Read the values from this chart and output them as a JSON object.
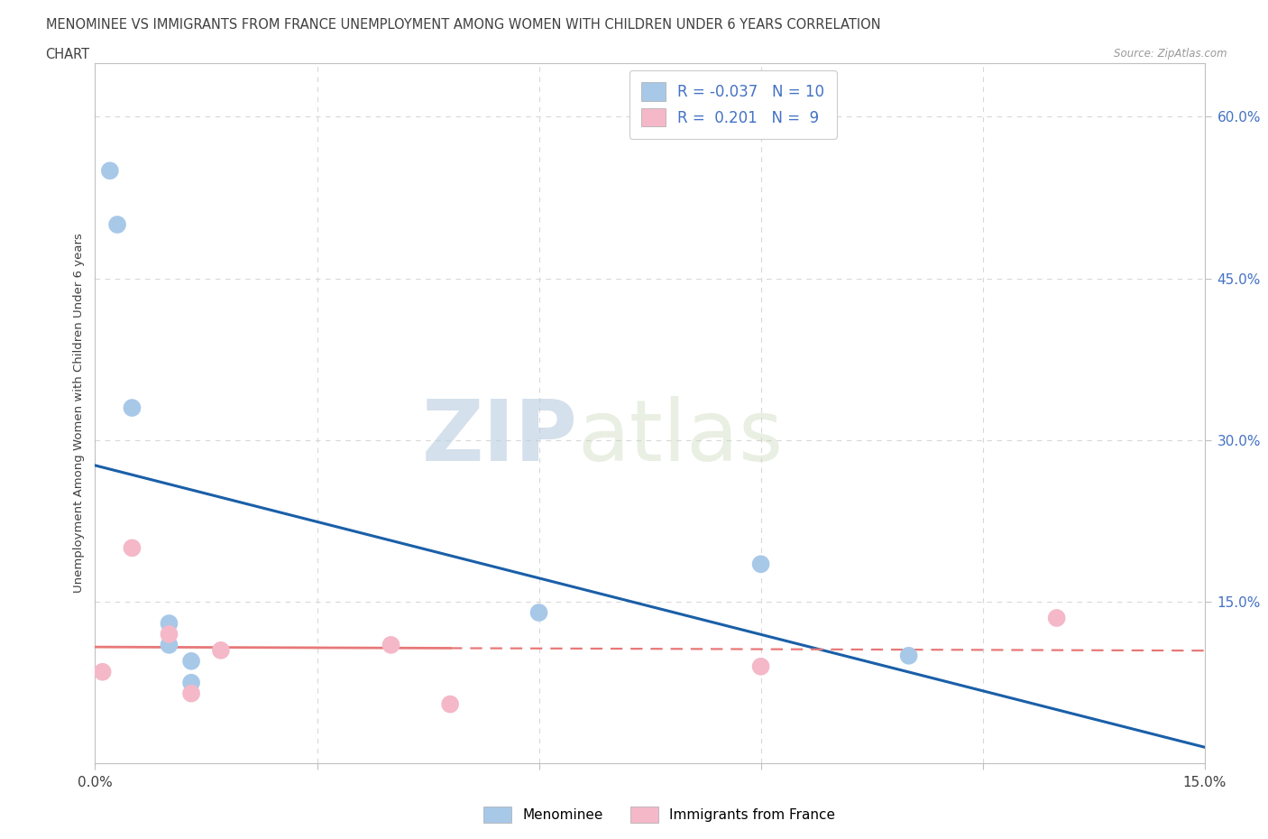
{
  "title_line1": "MENOMINEE VS IMMIGRANTS FROM FRANCE UNEMPLOYMENT AMONG WOMEN WITH CHILDREN UNDER 6 YEARS CORRELATION",
  "title_line2": "CHART",
  "source": "Source: ZipAtlas.com",
  "ylabel": "Unemployment Among Women with Children Under 6 years",
  "xlim": [
    0.0,
    0.15
  ],
  "ylim": [
    0.0,
    0.65
  ],
  "menominee_x": [
    0.002,
    0.003,
    0.005,
    0.01,
    0.01,
    0.013,
    0.013,
    0.06,
    0.09,
    0.11
  ],
  "menominee_y": [
    0.55,
    0.5,
    0.33,
    0.13,
    0.11,
    0.095,
    0.075,
    0.14,
    0.185,
    0.1
  ],
  "france_x": [
    0.001,
    0.005,
    0.01,
    0.013,
    0.017,
    0.04,
    0.048,
    0.09,
    0.13
  ],
  "france_y": [
    0.085,
    0.2,
    0.12,
    0.065,
    0.105,
    0.11,
    0.055,
    0.09,
    0.135
  ],
  "menominee_color": "#a8c8e8",
  "france_color": "#f4b8c8",
  "menominee_line_color": "#1a5fa8",
  "france_line_color": "#e87878",
  "menominee_R": -0.037,
  "menominee_N": 10,
  "france_R": 0.201,
  "france_N": 9,
  "watermark_zip": "ZIP",
  "watermark_atlas": "atlas",
  "background_color": "#ffffff",
  "grid_color": "#d8d8d8",
  "menominee_label": "Menominee",
  "france_label": "Immigrants from France",
  "legend_R_color": "#4472c4"
}
